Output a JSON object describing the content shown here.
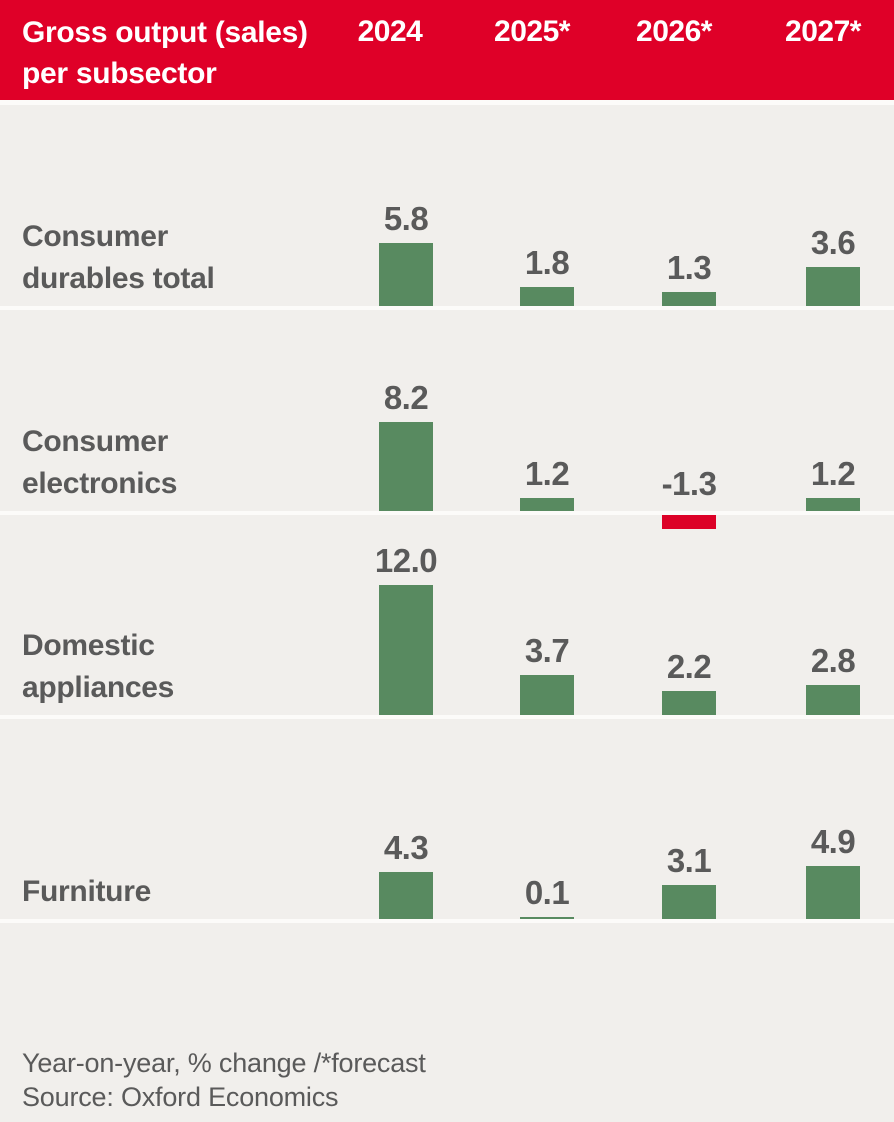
{
  "header": {
    "title_line1": "Gross output (sales)",
    "title_line2": "per subsector"
  },
  "footer": {
    "note": "Year-on-year, % change /*forecast",
    "source": "Source: Oxford Economics"
  },
  "colors": {
    "header_red": "#df0028",
    "bar_green": "#588a60",
    "bar_negative_red": "#dc0127",
    "background": "#f1efec",
    "separator": "#fcfbf9",
    "text_gray": "#5a5a5a"
  },
  "chart_data": {
    "type": "bar",
    "title": "Gross output (sales) per subsector",
    "unit": "Year-on-year % change, * = forecast",
    "legend_position": "none",
    "grid": false,
    "columns": [
      "2024",
      "2025*",
      "2026*",
      "2027*"
    ],
    "rows": [
      {
        "label": "Consumer durables total",
        "label_lines": [
          "Consumer",
          "durables total"
        ],
        "values": [
          5.8,
          1.8,
          1.3,
          3.6
        ]
      },
      {
        "label": "Consumer electronics",
        "label_lines": [
          "Consumer",
          "electronics"
        ],
        "values": [
          8.2,
          1.2,
          -1.3,
          1.2
        ]
      },
      {
        "label": "Domestic appliances",
        "label_lines": [
          "Domestic",
          "appliances"
        ],
        "values": [
          12.0,
          3.7,
          2.2,
          2.8
        ]
      },
      {
        "label": "Furniture",
        "label_lines": [
          "Furniture"
        ],
        "values": [
          4.3,
          0.1,
          3.1,
          4.9
        ]
      }
    ],
    "source": "Oxford Economics"
  }
}
